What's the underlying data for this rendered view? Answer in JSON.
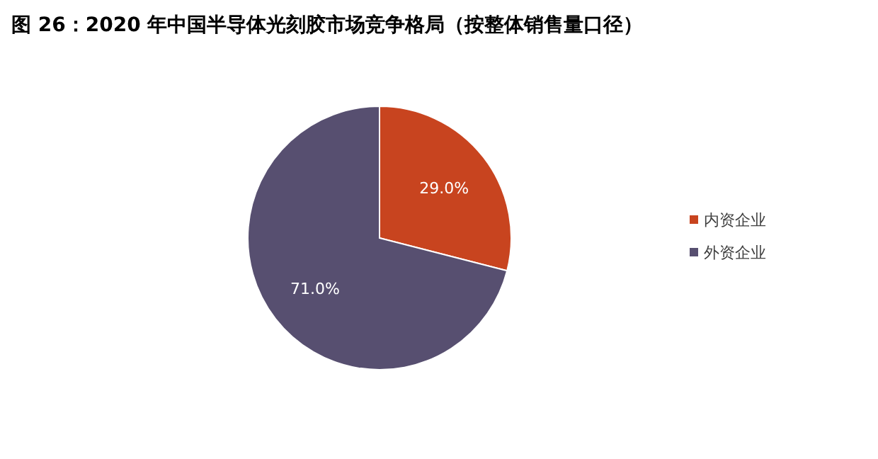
{
  "chart_data": {
    "type": "pie",
    "title": "图 26：2020 年中国半导体光刻胶市场竞争格局（按整体销售量口径）",
    "categories": [
      "内资企业",
      "外资企业"
    ],
    "values": [
      29.0,
      71.0
    ],
    "value_labels": [
      "29.0%",
      "71.0%"
    ],
    "colors": [
      "#c8441f",
      "#574f70"
    ],
    "legend": "right"
  }
}
